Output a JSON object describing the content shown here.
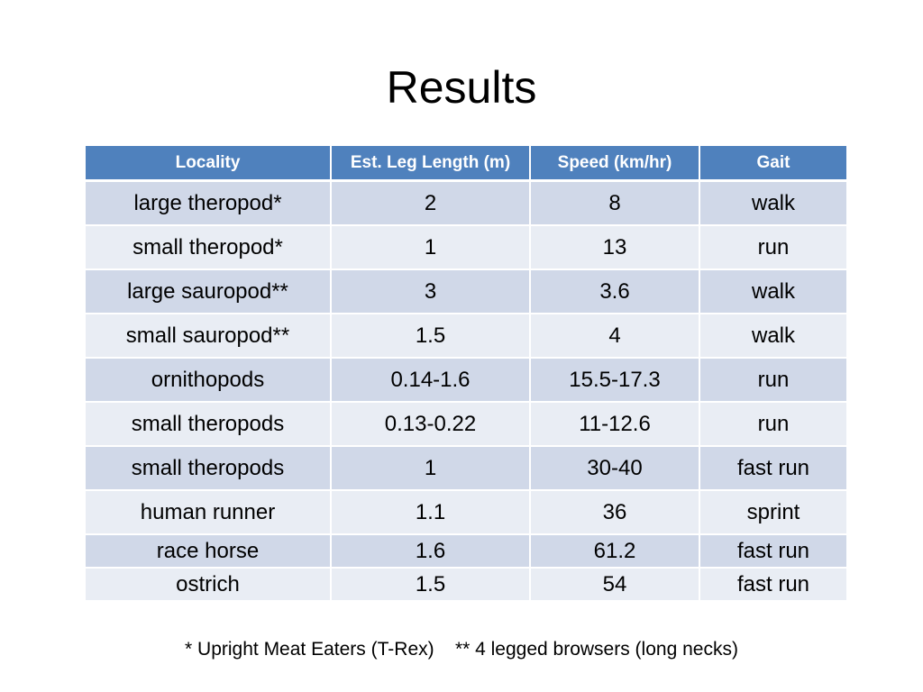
{
  "slide": {
    "title": "Results",
    "footnote": "* Upright Meat Eaters (T-Rex)    ** 4 legged browsers (long necks)"
  },
  "table": {
    "headers": [
      "Locality",
      "Est. Leg Length (m)",
      "Speed (km/hr)",
      "Gait"
    ],
    "rows": [
      [
        "large theropod*",
        "2",
        "8",
        "walk"
      ],
      [
        "small theropod*",
        "1",
        "13",
        "run"
      ],
      [
        "large sauropod**",
        "3",
        "3.6",
        "walk"
      ],
      [
        "small sauropod**",
        "1.5",
        "4",
        "walk"
      ],
      [
        "ornithopods",
        "0.14-1.6",
        "15.5-17.3",
        "run"
      ],
      [
        "small theropods",
        "0.13-0.22",
        "11-12.6",
        "run"
      ],
      [
        "small theropods",
        "1",
        "30-40",
        "fast run"
      ],
      [
        "human runner",
        "1.1",
        "36",
        "sprint"
      ],
      [
        "race horse",
        "1.6",
        "61.2",
        "fast run"
      ],
      [
        "ostrich",
        "1.5",
        "54",
        "fast run"
      ]
    ]
  },
  "colors": {
    "header_bg": "#4f81bd",
    "row_band_dark": "#d0d8e8",
    "row_band_light": "#e9edf4"
  }
}
